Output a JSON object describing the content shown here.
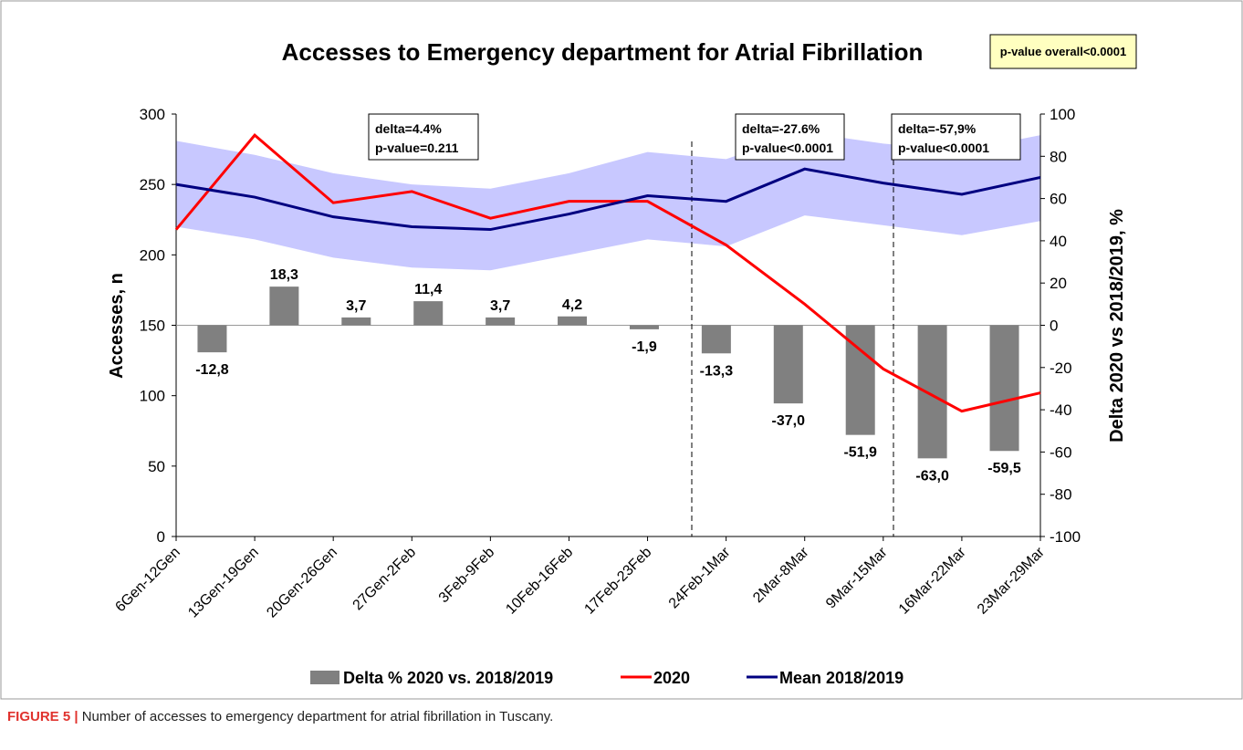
{
  "chart_data": {
    "type": "bar",
    "title": "Accesses to Emergency department for Atrial Fibrillation",
    "categories": [
      "6Gen-12Gen",
      "13Gen-19Gen",
      "20Gen-26Gen",
      "27Gen-2Feb",
      "3Feb-9Feb",
      "10Feb-16Feb",
      "17Feb-23Feb",
      "24Feb-1Mar",
      "2Mar-8Mar",
      "9Mar-15Mar",
      "16Mar-22Mar",
      "23Mar-29Mar"
    ],
    "ylabel": "Accesses, n",
    "y2label": "Delta 2020 vs 2018/2019, %",
    "ylim": [
      0,
      300
    ],
    "yticks": [
      0,
      50,
      100,
      150,
      200,
      250,
      300
    ],
    "y2lim": [
      -100,
      100
    ],
    "y2ticks": [
      -100,
      -80,
      -60,
      -40,
      -20,
      0,
      20,
      40,
      60,
      80,
      100
    ],
    "series": [
      {
        "name": "Delta % 2020 vs. 2018/2019",
        "type": "bar",
        "axis": "y2",
        "color": "#808080",
        "values": [
          -12.8,
          18.3,
          3.7,
          11.4,
          3.7,
          4.2,
          -1.9,
          -13.3,
          -37.0,
          -51.9,
          -63.0,
          -59.5
        ],
        "value_labels": [
          "-12,8",
          "18,3",
          "3,7",
          "11,4",
          "3,7",
          "4,2",
          "-1,9",
          "-13,3",
          "-37,0",
          "-51,9",
          "-63,0",
          "-59,5"
        ]
      },
      {
        "name": "2020",
        "type": "line",
        "color": "#ff0000",
        "values": [
          218,
          285,
          237,
          245,
          226,
          238,
          238,
          207,
          165,
          119,
          89,
          102
        ]
      },
      {
        "name": "Mean 2018/2019",
        "type": "line",
        "color": "#000080",
        "values": [
          250,
          241,
          227,
          220,
          218,
          229,
          242,
          238,
          261,
          251,
          243,
          255
        ]
      }
    ],
    "band": {
      "color": "#c8c8ff",
      "upper": [
        281,
        271,
        258,
        250,
        247,
        258,
        273,
        268,
        287,
        279,
        274,
        285
      ],
      "lower": [
        220,
        211,
        198,
        191,
        189,
        200,
        211,
        206,
        228,
        221,
        214,
        224
      ]
    },
    "annotations": [
      {
        "lines": [
          "delta=4.4%",
          "p-value=0.211"
        ]
      },
      {
        "lines": [
          "delta=-27.6%",
          "p-value<0.0001"
        ]
      },
      {
        "lines": [
          "delta=-57,9%",
          "p-value<0.0001"
        ]
      }
    ],
    "overall": "p-value overall<0.0001",
    "caption": {
      "label": "FIGURE 5 |",
      "text": " Number of accesses to emergency department for atrial fibrillation in Tuscany."
    }
  }
}
